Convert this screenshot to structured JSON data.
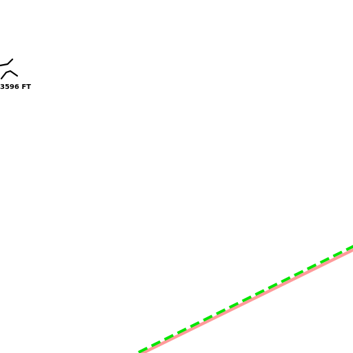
{
  "map": {
    "background_color": "#ffffff",
    "route": {
      "underlay_color": "#ff9a9a",
      "dash_color": "#00e600"
    },
    "pass_symbol": {
      "name": "mountain-pass-icon",
      "color": "#000000"
    },
    "elevation_label": {
      "text": "3596 FT"
    }
  }
}
